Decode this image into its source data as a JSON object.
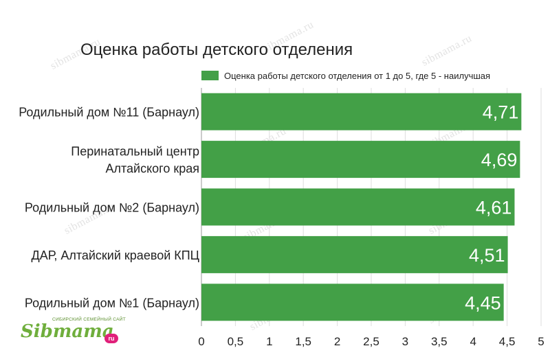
{
  "watermark": {
    "text": "sibmama.ru"
  },
  "logo": {
    "tagline": "СИБИРСКИЙ СЕМЕЙНЫЙ САЙТ",
    "word": "Sibmama",
    "suffix": "ru"
  },
  "chart_data": {
    "type": "bar",
    "orientation": "horizontal",
    "title": "Оценка работы детского отделения",
    "categories": [
      "Родильный дом №11 (Барнаул)",
      "Перинатальный центр Алтайского края",
      "Родильный дом №2 (Барнаул)",
      "ДАР, Алтайский краевой КПЦ",
      "Родильный дом №1 (Барнаул)"
    ],
    "series": [
      {
        "name": "Оценка работы детского отделения от 1 до 5, где 5 - наилучшая",
        "values": [
          4.71,
          4.69,
          4.61,
          4.51,
          4.45
        ],
        "labels": [
          "4,71",
          "4,69",
          "4,61",
          "4,51",
          "4,45"
        ]
      }
    ],
    "xlim": [
      0,
      5
    ],
    "ticks": [
      "0",
      "0,5",
      "1",
      "1,5",
      "2",
      "2,5",
      "3",
      "3,5",
      "4",
      "4,5",
      "5"
    ],
    "tick_values": [
      0,
      0.5,
      1,
      1.5,
      2,
      2.5,
      3,
      3.5,
      4,
      4.5,
      5
    ],
    "grid": true,
    "legend": "top-right",
    "colors": {
      "bar": "#43a047",
      "label": "#ffffff",
      "grid": "#dddddd",
      "text": "#222222"
    }
  }
}
